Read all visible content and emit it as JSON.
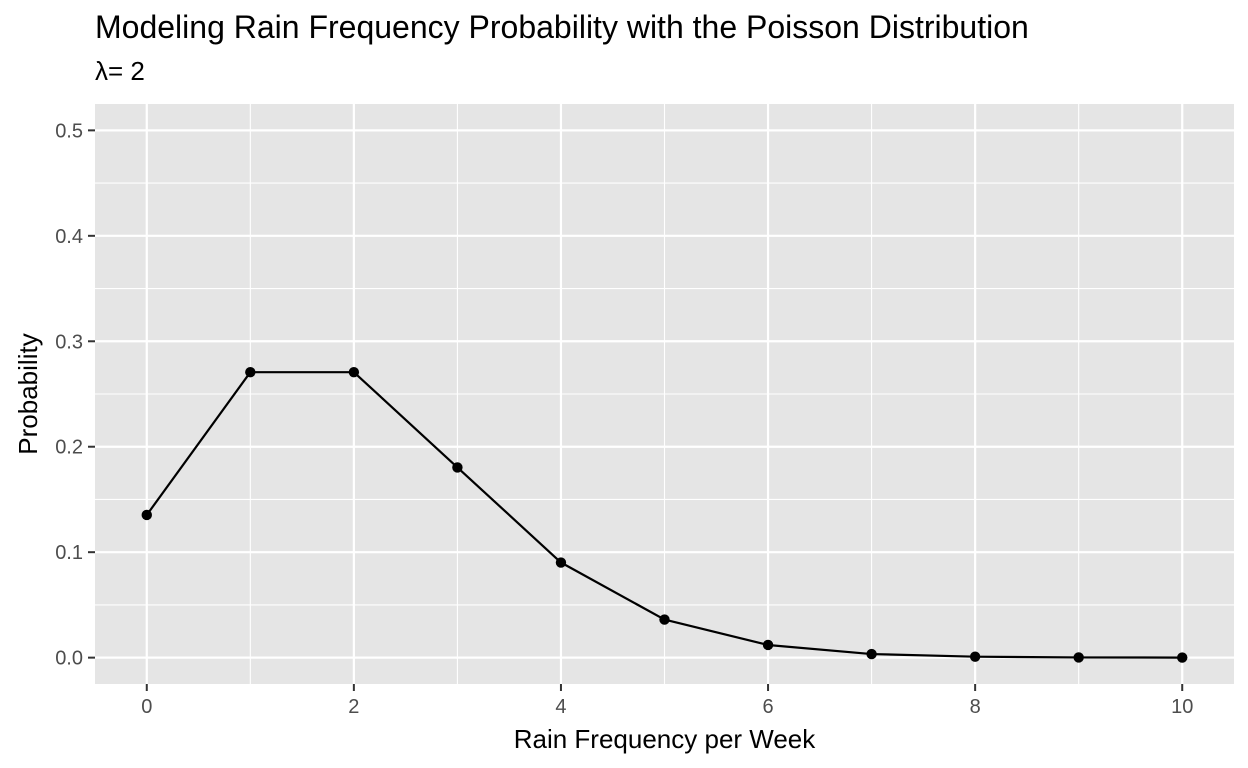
{
  "chart_data": {
    "type": "line",
    "title": "Modeling Rain Frequency Probability with the Poisson Distribution",
    "subtitle": "λ= 2",
    "xlabel": "Rain Frequency per Week",
    "ylabel": "Probability",
    "x": [
      0,
      1,
      2,
      3,
      4,
      5,
      6,
      7,
      8,
      9,
      10
    ],
    "series": [
      {
        "values": [
          0.1353,
          0.2707,
          0.2707,
          0.1804,
          0.0902,
          0.0361,
          0.012,
          0.0034,
          0.0009,
          0.0002,
          4e-05
        ]
      }
    ],
    "xlim": [
      -0.5,
      10.5
    ],
    "ylim": [
      -0.025,
      0.525
    ],
    "x_ticks": [
      0,
      2,
      4,
      6,
      8,
      10
    ],
    "x_tick_labels": [
      "0",
      "2",
      "4",
      "6",
      "8",
      "10"
    ],
    "y_ticks": [
      0.0,
      0.1,
      0.2,
      0.3,
      0.4,
      0.5
    ],
    "y_tick_labels": [
      "0.0",
      "0.1",
      "0.2",
      "0.3",
      "0.4",
      "0.5"
    ],
    "grid": true,
    "panel_background": "#e5e5e5",
    "grid_color": "#ffffff",
    "line_color": "#000000",
    "point_color": "#000000"
  }
}
